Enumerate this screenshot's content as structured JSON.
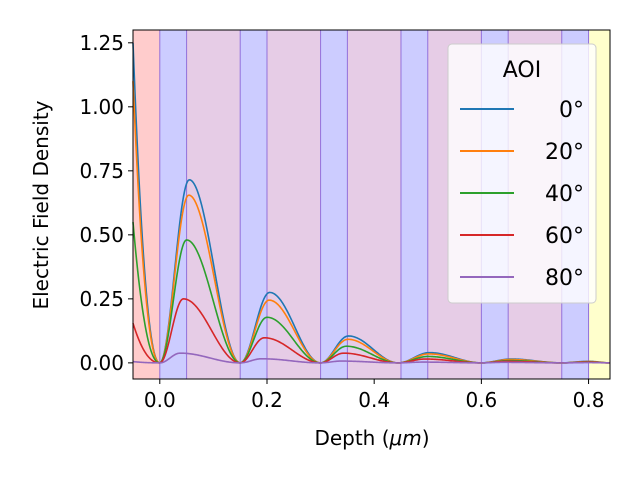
{
  "chart_data": {
    "type": "line",
    "title": "",
    "xlabel_main": "Depth (",
    "xlabel_unit": "μm",
    "xlabel_close": ")",
    "ylabel": "Electric Field Density",
    "xlim": [
      -0.05,
      0.84
    ],
    "ylim": [
      -0.063,
      1.3
    ],
    "xticks": [
      0.0,
      0.2,
      0.4,
      0.6,
      0.8
    ],
    "xtick_labels": [
      "0.0",
      "0.2",
      "0.4",
      "0.6",
      "0.8"
    ],
    "yticks": [
      0.0,
      0.25,
      0.5,
      0.75,
      1.0,
      1.25
    ],
    "ytick_labels": [
      "0.00",
      "0.25",
      "0.50",
      "0.75",
      "1.00",
      "1.25"
    ],
    "layers": [
      {
        "from": -0.05,
        "to": 0.0,
        "color": "#ffcccc"
      },
      {
        "from": 0.0,
        "to": 0.05,
        "color": "#ccccff"
      },
      {
        "from": 0.05,
        "to": 0.15,
        "color": "#e6cce6"
      },
      {
        "from": 0.15,
        "to": 0.2,
        "color": "#ccccff"
      },
      {
        "from": 0.2,
        "to": 0.3,
        "color": "#e6cce6"
      },
      {
        "from": 0.3,
        "to": 0.35,
        "color": "#ccccff"
      },
      {
        "from": 0.35,
        "to": 0.45,
        "color": "#e6cce6"
      },
      {
        "from": 0.45,
        "to": 0.5,
        "color": "#ccccff"
      },
      {
        "from": 0.5,
        "to": 0.6,
        "color": "#e6cce6"
      },
      {
        "from": 0.6,
        "to": 0.65,
        "color": "#ccccff"
      },
      {
        "from": 0.65,
        "to": 0.75,
        "color": "#e6cce6"
      },
      {
        "from": 0.75,
        "to": 0.8,
        "color": "#ccccff"
      },
      {
        "from": 0.8,
        "to": 0.84,
        "color": "#ffffcc"
      }
    ],
    "layer_line_color": "#9370db",
    "legend": {
      "title": "AOI",
      "position": "upper right"
    },
    "series": [
      {
        "name": "0°",
        "color": "#1f77b4",
        "start": 1.25,
        "peaks": [
          [
            0.055,
            0.715
          ],
          [
            0.205,
            0.275
          ],
          [
            0.352,
            0.105
          ],
          [
            0.503,
            0.04
          ],
          [
            0.655,
            0.015
          ],
          [
            0.8,
            0.006
          ]
        ]
      },
      {
        "name": "20°",
        "color": "#ff7f0e",
        "start": 1.1,
        "peaks": [
          [
            0.054,
            0.655
          ],
          [
            0.204,
            0.245
          ],
          [
            0.351,
            0.092
          ],
          [
            0.502,
            0.035
          ],
          [
            0.654,
            0.013
          ],
          [
            0.8,
            0.005
          ]
        ]
      },
      {
        "name": "40°",
        "color": "#2ca02c",
        "start": 0.55,
        "peaks": [
          [
            0.05,
            0.48
          ],
          [
            0.2,
            0.178
          ],
          [
            0.348,
            0.065
          ],
          [
            0.5,
            0.025
          ],
          [
            0.652,
            0.009
          ],
          [
            0.8,
            0.004
          ]
        ]
      },
      {
        "name": "60°",
        "color": "#d62728",
        "start": 0.155,
        "peaks": [
          [
            0.044,
            0.25
          ],
          [
            0.195,
            0.098
          ],
          [
            0.343,
            0.038
          ],
          [
            0.495,
            0.015
          ],
          [
            0.648,
            0.006
          ],
          [
            0.8,
            0.003
          ]
        ]
      },
      {
        "name": "80°",
        "color": "#9467bd",
        "start": 0.005,
        "peaks": [
          [
            0.038,
            0.038
          ],
          [
            0.19,
            0.016
          ],
          [
            0.338,
            0.007
          ],
          [
            0.49,
            0.003
          ],
          [
            0.64,
            0.002
          ],
          [
            0.8,
            0.001
          ]
        ]
      }
    ]
  }
}
